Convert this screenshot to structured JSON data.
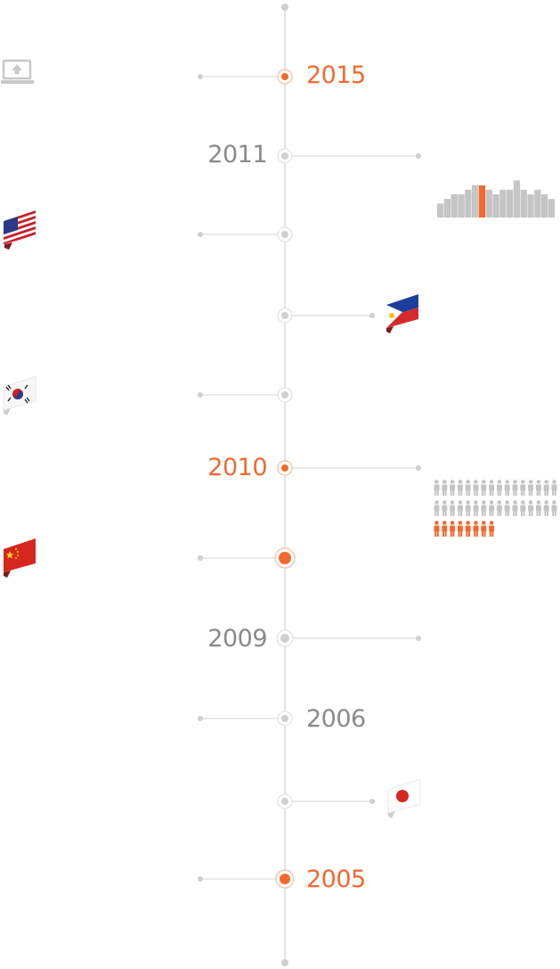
{
  "colors": {
    "accent": "#f26a30",
    "year_gray": "#8a8a8a",
    "line": "#e3e3e3",
    "dot": "#cfcfcf",
    "bar_gray": "#c5c5c5",
    "person_gray": "#c4c4c4"
  },
  "events": [
    {
      "year": "2015",
      "side": "right",
      "highlight": true,
      "branch": "left",
      "icon": "laptop-upload-icon"
    },
    {
      "year": "2011",
      "side": "left",
      "highlight": false,
      "branch": "right",
      "icon": "bar-chart-icon"
    },
    {
      "year": "",
      "side": "",
      "highlight": false,
      "branch": "left",
      "icon": "usa-flag-icon"
    },
    {
      "year": "",
      "side": "",
      "highlight": false,
      "branch": "right",
      "icon": "philippines-flag-icon"
    },
    {
      "year": "",
      "side": "",
      "highlight": false,
      "branch": "left",
      "icon": "south-korea-flag-icon"
    },
    {
      "year": "2010",
      "side": "left",
      "highlight": true,
      "branch": "right",
      "icon": "people-pictogram-icon"
    },
    {
      "year": "",
      "side": "",
      "highlight": true,
      "branch": "left",
      "icon": "china-flag-icon"
    },
    {
      "year": "2009",
      "side": "left",
      "highlight": false,
      "branch": "right",
      "icon": ""
    },
    {
      "year": "2006",
      "side": "right",
      "highlight": false,
      "branch": "left",
      "icon": ""
    },
    {
      "year": "",
      "side": "",
      "highlight": false,
      "branch": "right",
      "icon": "japan-flag-icon"
    },
    {
      "year": "2005",
      "side": "right",
      "highlight": true,
      "branch": "left",
      "icon": ""
    }
  ],
  "bar_chart": {
    "values": [
      3,
      4,
      5,
      5,
      6,
      7,
      6,
      6,
      5,
      6,
      6,
      8,
      6,
      5,
      6,
      5,
      4
    ],
    "highlight_index": 6
  },
  "people": {
    "total": 40,
    "highlighted": 8
  }
}
